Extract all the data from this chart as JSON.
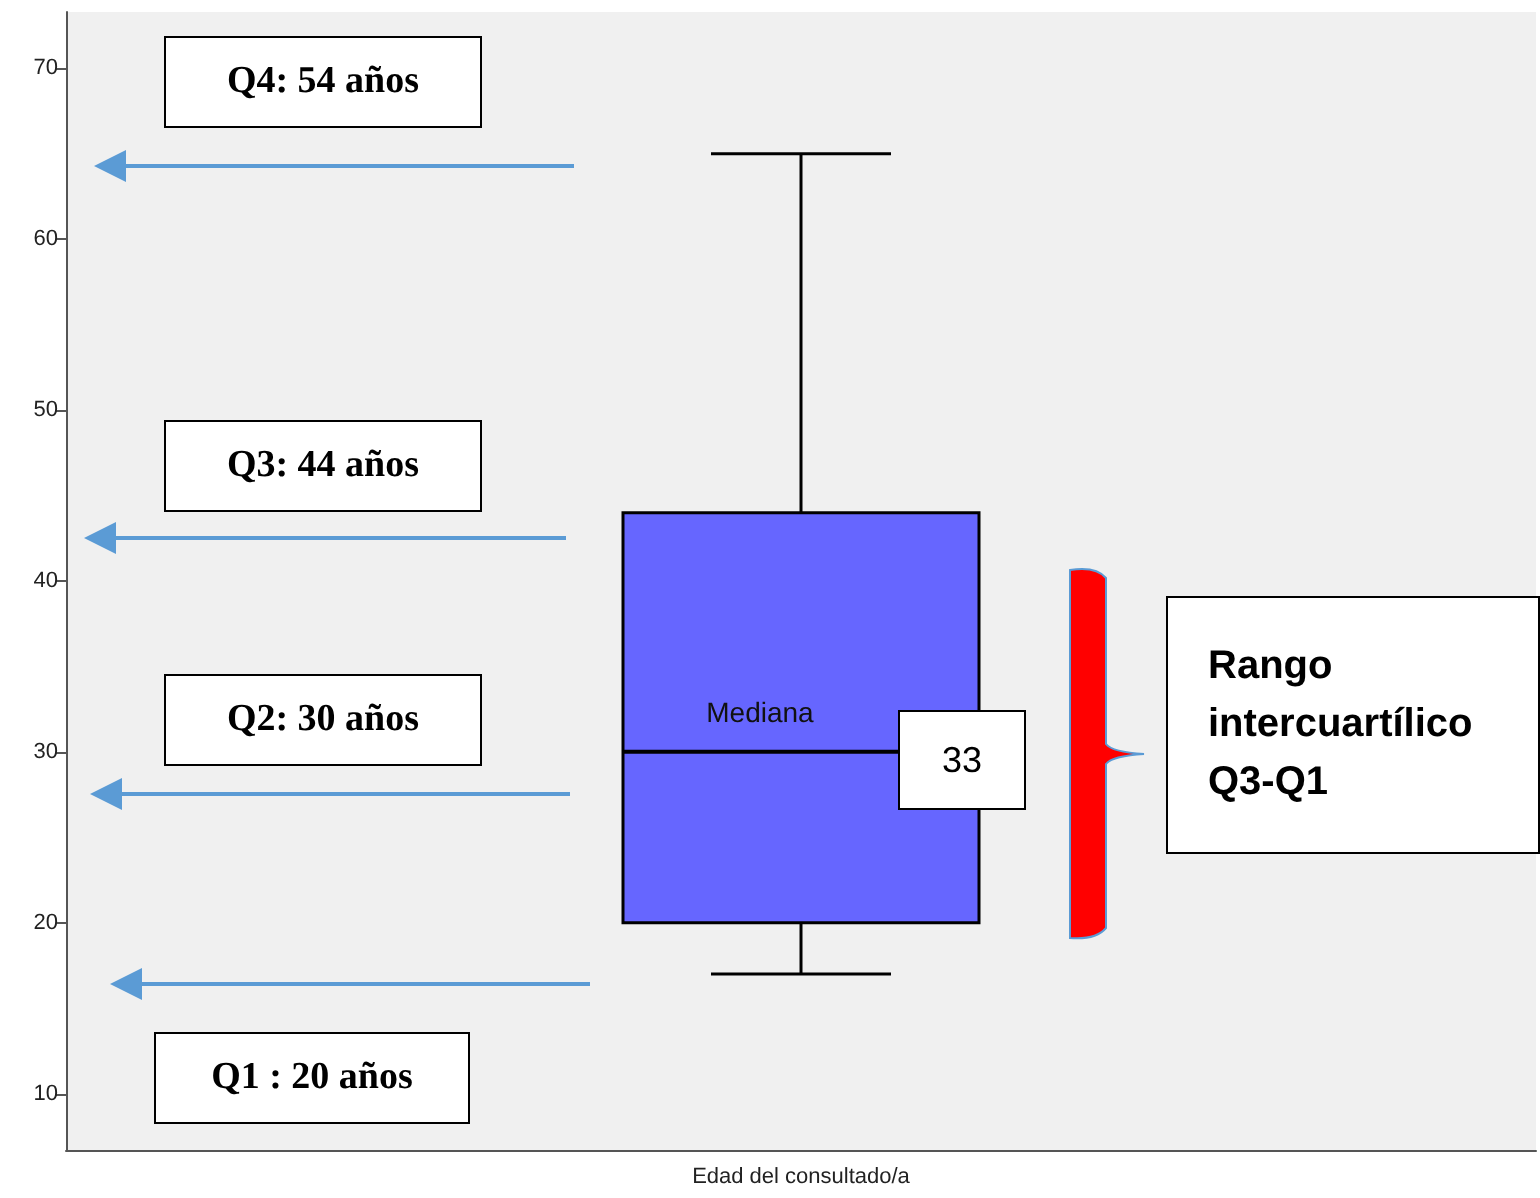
{
  "chart_data": {
    "type": "box",
    "categories": [
      "Edad del consultado/a"
    ],
    "boxes": [
      {
        "low": 17,
        "q1": 20,
        "median": 30,
        "q3": 44,
        "high": 65
      }
    ],
    "color": "#6666ff",
    "ylim": [
      6.7,
      73.3
    ],
    "yticks": [
      10,
      20,
      30,
      40,
      50,
      60,
      70
    ],
    "grid": false,
    "annotations": [
      "Q4: 54 años",
      "Q3: 44 años",
      "Q2: 30 años",
      "Q1 : 20 años",
      "Mediana",
      "33",
      "Rango intercuartílico Q3-Q1"
    ]
  }
}
